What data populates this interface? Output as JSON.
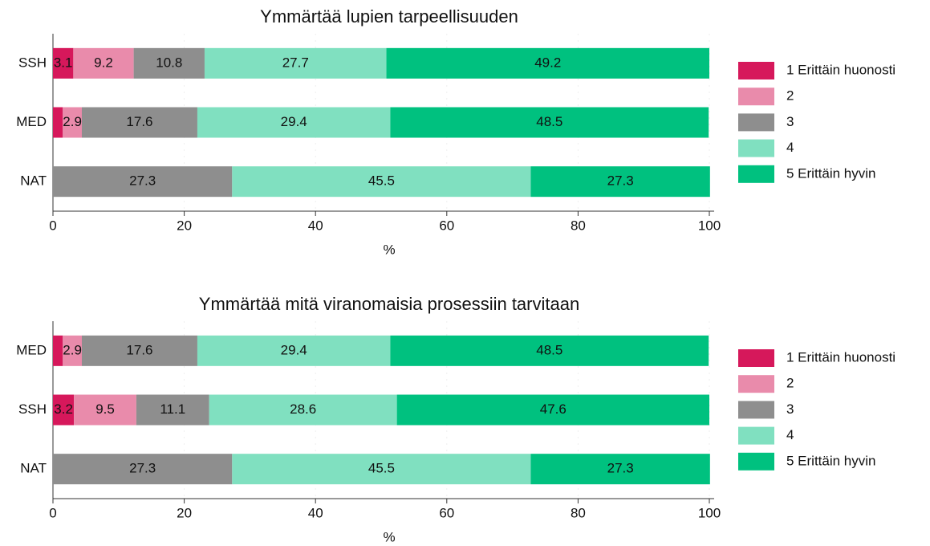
{
  "chart_data": [
    {
      "type": "bar",
      "orientation": "horizontal",
      "stacked": true,
      "title": "Ymmärtää lupien tarpeellisuuden",
      "categories": [
        "SSH",
        "MED",
        "NAT"
      ],
      "series": [
        {
          "name": "1 Erittäin huonosti",
          "color": "#d6185b",
          "values": [
            3.1,
            1.5,
            0
          ]
        },
        {
          "name": "2",
          "color": "#e98bab",
          "values": [
            9.2,
            2.9,
            0
          ]
        },
        {
          "name": "3",
          "color": "#8e8e8e",
          "values": [
            10.8,
            17.6,
            27.3
          ]
        },
        {
          "name": "4",
          "color": "#80e0c0",
          "values": [
            27.7,
            29.4,
            45.5
          ]
        },
        {
          "name": "5 Erittäin hyvin",
          "color": "#00c17f",
          "values": [
            49.2,
            48.5,
            27.3
          ]
        }
      ],
      "xlim": [
        0,
        100
      ],
      "xticks": [
        0,
        20,
        40,
        60,
        80,
        100
      ],
      "xlabel": "%",
      "grid": true,
      "legend": "right"
    },
    {
      "type": "bar",
      "orientation": "horizontal",
      "stacked": true,
      "title": "Ymmärtää mitä viranomaisia prosessiin tarvitaan",
      "categories": [
        "MED",
        "SSH",
        "NAT"
      ],
      "series": [
        {
          "name": "1 Erittäin huonosti",
          "color": "#d6185b",
          "values": [
            1.5,
            3.2,
            0
          ]
        },
        {
          "name": "2",
          "color": "#e98bab",
          "values": [
            2.9,
            9.5,
            0
          ]
        },
        {
          "name": "3",
          "color": "#8e8e8e",
          "values": [
            17.6,
            11.1,
            27.3
          ]
        },
        {
          "name": "4",
          "color": "#80e0c0",
          "values": [
            29.4,
            28.6,
            45.5
          ]
        },
        {
          "name": "5 Erittäin hyvin",
          "color": "#00c17f",
          "values": [
            48.5,
            47.6,
            27.3
          ]
        }
      ],
      "xlim": [
        0,
        100
      ],
      "xticks": [
        0,
        20,
        40,
        60,
        80,
        100
      ],
      "xlabel": "%",
      "grid": true,
      "legend": "right"
    }
  ]
}
